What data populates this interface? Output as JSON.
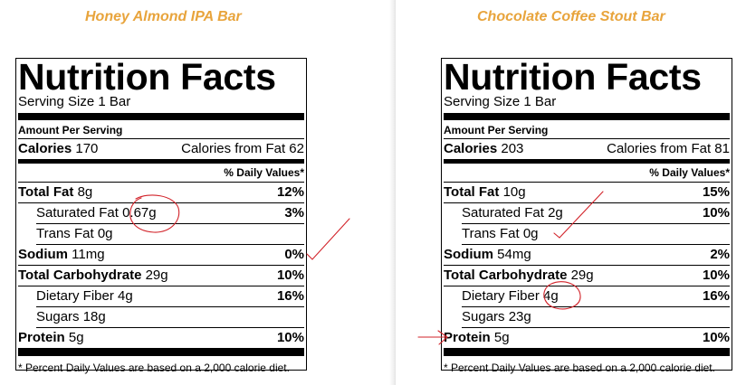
{
  "labels": [
    {
      "product_title": "Honey Almond IPA Bar",
      "heading": "Nutrition Facts",
      "serving_size": "Serving Size 1 Bar",
      "amount_per_serving": "Amount Per Serving",
      "calories_label": "Calories",
      "calories_value": "170",
      "calories_from_fat": "Calories from Fat 62",
      "daily_values_header": "% Daily Values*",
      "total_fat_label": "Total Fat",
      "total_fat_value": "8g",
      "total_fat_pct": "12%",
      "saturated_fat_label": "Saturated Fat",
      "saturated_fat_value": "0.67g",
      "saturated_fat_pct": "3%",
      "trans_fat_label": "Trans Fat",
      "trans_fat_value": "0g",
      "sodium_label": "Sodium",
      "sodium_value": "11mg",
      "sodium_pct": "0%",
      "carb_label": "Total Carbohydrate",
      "carb_value": "29g",
      "carb_pct": "10%",
      "fiber_label": "Dietary Fiber",
      "fiber_value": "4g",
      "fiber_pct": "16%",
      "sugars_label": "Sugars",
      "sugars_value": "18g",
      "protein_label": "Protein",
      "protein_value": "5g",
      "protein_pct": "10%",
      "footnote": "* Percent Daily Values are based on a 2,000 calorie diet."
    },
    {
      "product_title": "Chocolate Coffee Stout Bar",
      "heading": "Nutrition Facts",
      "serving_size": "Serving Size 1 Bar",
      "amount_per_serving": "Amount Per Serving",
      "calories_label": "Calories",
      "calories_value": "203",
      "calories_from_fat": "Calories from Fat 81",
      "daily_values_header": "% Daily Values*",
      "total_fat_label": "Total Fat",
      "total_fat_value": "10g",
      "total_fat_pct": "15%",
      "saturated_fat_label": "Saturated Fat",
      "saturated_fat_value": "2g",
      "saturated_fat_pct": "10%",
      "trans_fat_label": "Trans Fat",
      "trans_fat_value": "0g",
      "sodium_label": "Sodium",
      "sodium_value": "54mg",
      "sodium_pct": "2%",
      "carb_label": "Total Carbohydrate",
      "carb_value": "29g",
      "carb_pct": "10%",
      "fiber_label": "Dietary Fiber",
      "fiber_value": "4g",
      "fiber_pct": "16%",
      "sugars_label": "Sugars",
      "sugars_value": "23g",
      "protein_label": "Protein",
      "protein_value": "5g",
      "protein_pct": "10%",
      "footnote": "* Percent Daily Values are based on a 2,000 calorie diet."
    }
  ],
  "colors": {
    "product_title": "#e8a43c",
    "annotation_ink": "#d2232a"
  }
}
